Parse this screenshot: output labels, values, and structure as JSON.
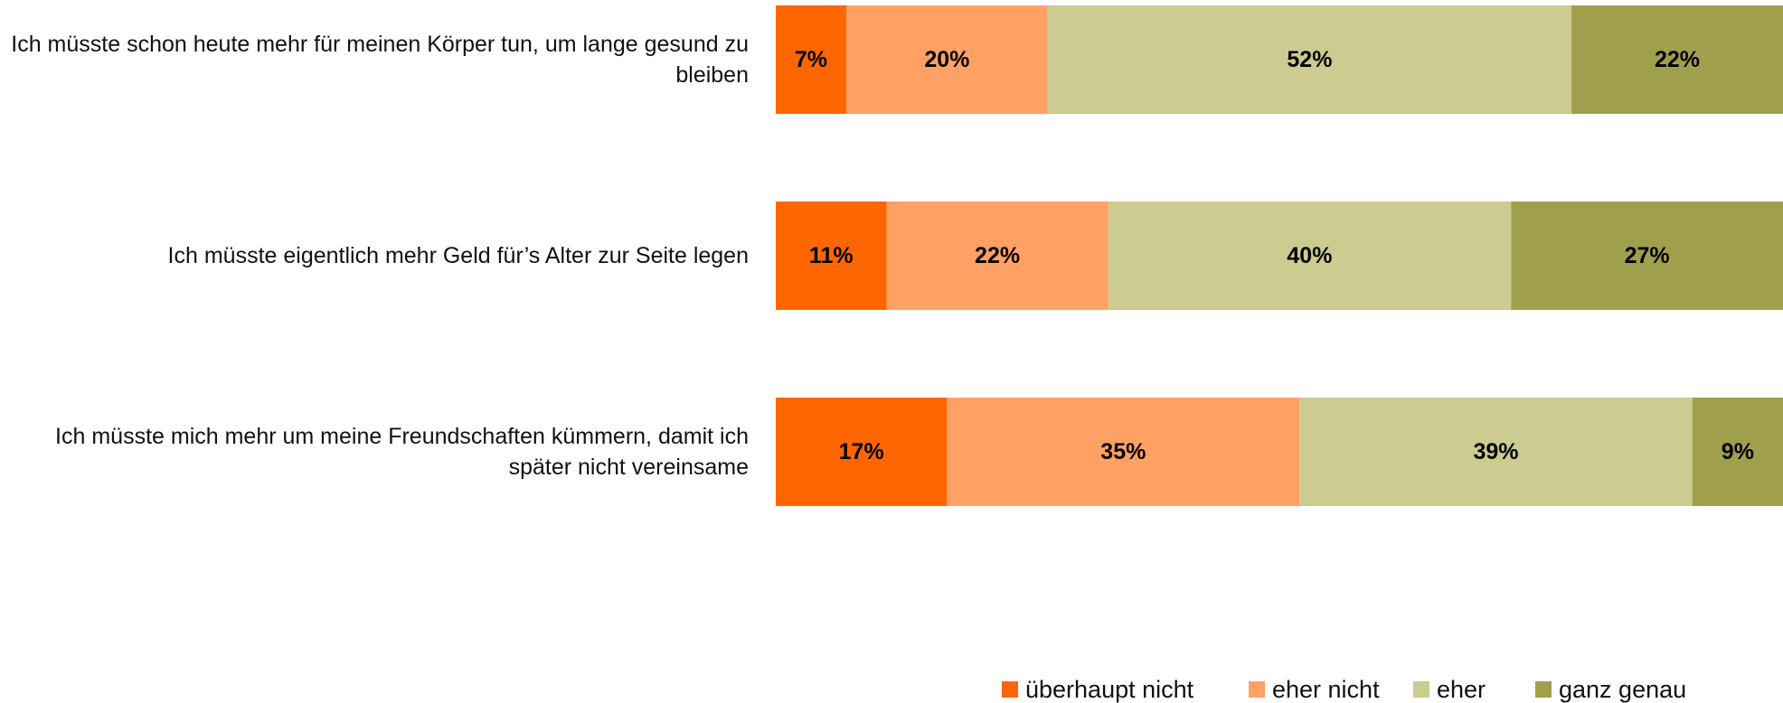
{
  "chart_data": {
    "type": "stacked_barh",
    "categories": [
      "Ich müsste schon heute mehr für meinen Körper tun, um lange gesund zu bleiben",
      "Ich müsste eigentlich mehr Geld für’s Alter zur Seite legen",
      "Ich müsste mich mehr um meine Freundschaften kümmern, damit ich später nicht vereinsame"
    ],
    "series": [
      {
        "name": "überhaupt nicht",
        "color": "#ff6600",
        "values": [
          7,
          11,
          17
        ],
        "value_labels": [
          "7%",
          "11%",
          "17%"
        ]
      },
      {
        "name": "eher nicht",
        "color": "#ffa064",
        "values": [
          20,
          22,
          35
        ],
        "value_labels": [
          "20%",
          "22%",
          "35%"
        ]
      },
      {
        "name": "eher",
        "color": "#cccb90",
        "values": [
          52,
          40,
          39
        ],
        "value_labels": [
          "52%",
          "40%",
          "39%"
        ]
      },
      {
        "name": "ganz genau",
        "color": "#a0a04c",
        "values": [
          22,
          27,
          9
        ],
        "value_labels": [
          "22%",
          "27%",
          "9%"
        ]
      }
    ],
    "xlim": [
      0,
      100
    ],
    "legend": "bottom"
  }
}
